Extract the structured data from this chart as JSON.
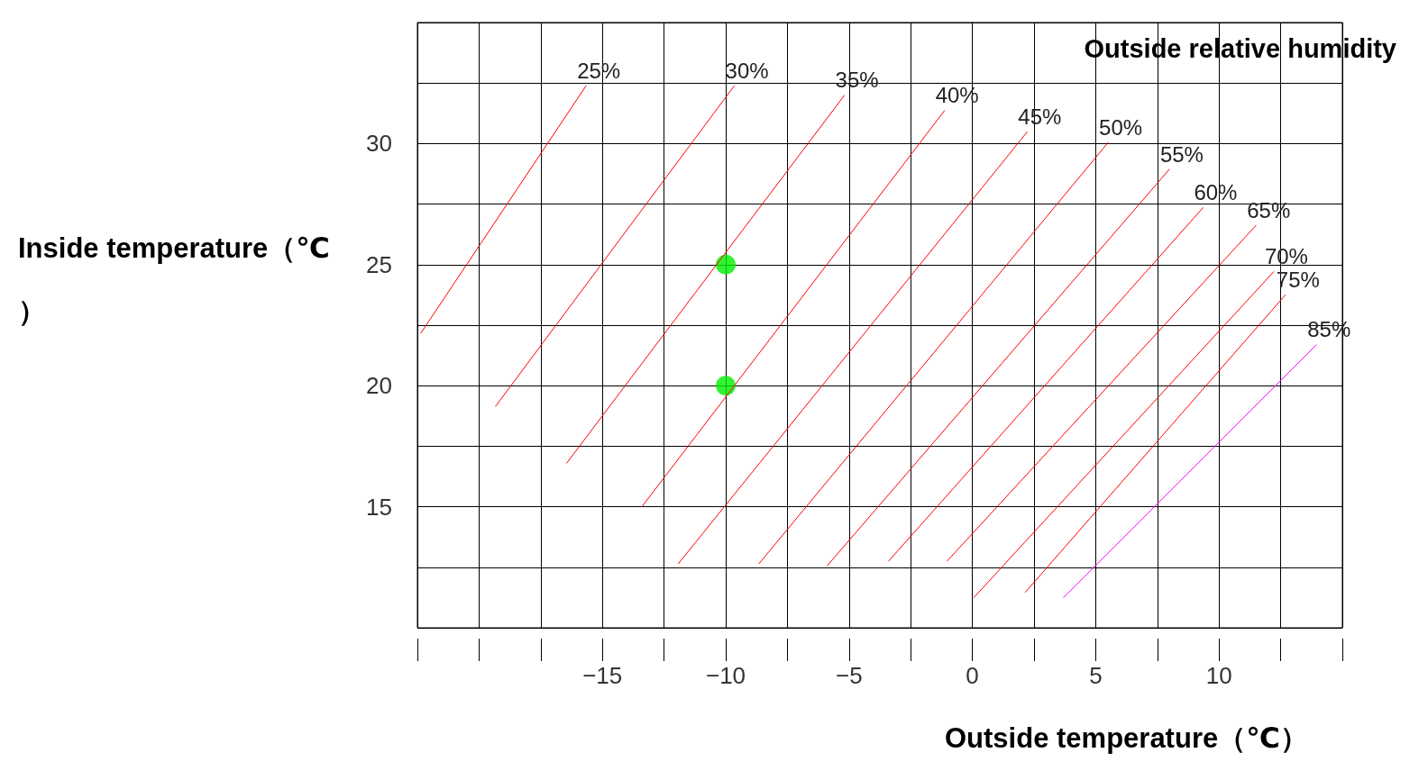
{
  "chart_data": {
    "type": "line",
    "title": "Outside relative humidity",
    "xlabel": "Outside temperature（℃）",
    "ylabel": "Inside temperature（℃）",
    "xlim": [
      -22.5,
      15
    ],
    "ylim": [
      10,
      35
    ],
    "xticks": [
      {
        "value": -22.5,
        "label": null
      },
      {
        "value": -20,
        "label": null
      },
      {
        "value": -17.5,
        "label": null
      },
      -15,
      {
        "value": -12.5,
        "label": null
      },
      -10,
      {
        "value": -7.5,
        "label": null
      },
      -5,
      {
        "value": -2.5,
        "label": null
      },
      0,
      {
        "value": 2.5,
        "label": null
      },
      5,
      {
        "value": 7.5,
        "label": null
      },
      10,
      {
        "value": 12.5,
        "label": null
      },
      {
        "value": 15,
        "label": null
      }
    ],
    "yticks": [
      {
        "value": 10,
        "label": null
      },
      {
        "value": 12.5,
        "label": null
      },
      15,
      {
        "value": 17.5,
        "label": null
      },
      20,
      {
        "value": 22.5,
        "label": null
      },
      25,
      {
        "value": 27.5,
        "label": null
      },
      30,
      {
        "value": 32.5,
        "label": null
      },
      {
        "value": 35,
        "label": null
      }
    ],
    "grid": true,
    "legend": false,
    "marker": "none",
    "line_style": "solid",
    "series": [
      {
        "name": "25%",
        "color": "#ff0000",
        "x": [
          -22.36,
          -15.66
        ],
        "values": [
          22.17,
          32.39
        ]
      },
      {
        "name": "30%",
        "color": "#ff0000",
        "x": [
          -19.33,
          -9.65
        ],
        "values": [
          19.15,
          32.39
        ]
      },
      {
        "name": "35%",
        "color": "#ff0000",
        "x": [
          -16.45,
          -5.19
        ],
        "values": [
          16.8,
          31.99
        ]
      },
      {
        "name": "40%",
        "color": "#ff0000",
        "x": [
          -13.4,
          -1.13
        ],
        "values": [
          15.0,
          31.36
        ]
      },
      {
        "name": "45%",
        "color": "#ff0000",
        "x": [
          -11.92,
          2.22
        ],
        "values": [
          12.65,
          30.48
        ]
      },
      {
        "name": "50%",
        "color": "#ff0000",
        "x": [
          -8.65,
          5.5
        ],
        "values": [
          12.65,
          30.04
        ]
      },
      {
        "name": "55%",
        "color": "#ff0000",
        "x": [
          -5.88,
          7.98
        ],
        "values": [
          12.57,
          28.93
        ]
      },
      {
        "name": "60%",
        "color": "#ff0000",
        "x": [
          -3.39,
          9.35
        ],
        "values": [
          12.76,
          27.35
        ]
      },
      {
        "name": "65%",
        "color": "#ff0000",
        "x": [
          -1.02,
          11.5
        ],
        "values": [
          12.76,
          26.62
        ]
      },
      {
        "name": "70%",
        "color": "#ff0000",
        "x": [
          0.06,
          12.22
        ],
        "values": [
          11.25,
          24.71
        ]
      },
      {
        "name": "75%",
        "color": "#ff0000",
        "x": [
          2.15,
          12.69
        ],
        "values": [
          11.47,
          23.75
        ]
      },
      {
        "name": "85%",
        "color": "#ff00ff",
        "x": [
          3.7,
          13.95
        ],
        "values": [
          11.25,
          21.69
        ]
      },
      {
        "type": "scatter",
        "color": "#00ee00",
        "marker": "circle",
        "x": [
          -10,
          -10
        ],
        "values": [
          25,
          20
        ]
      }
    ]
  }
}
